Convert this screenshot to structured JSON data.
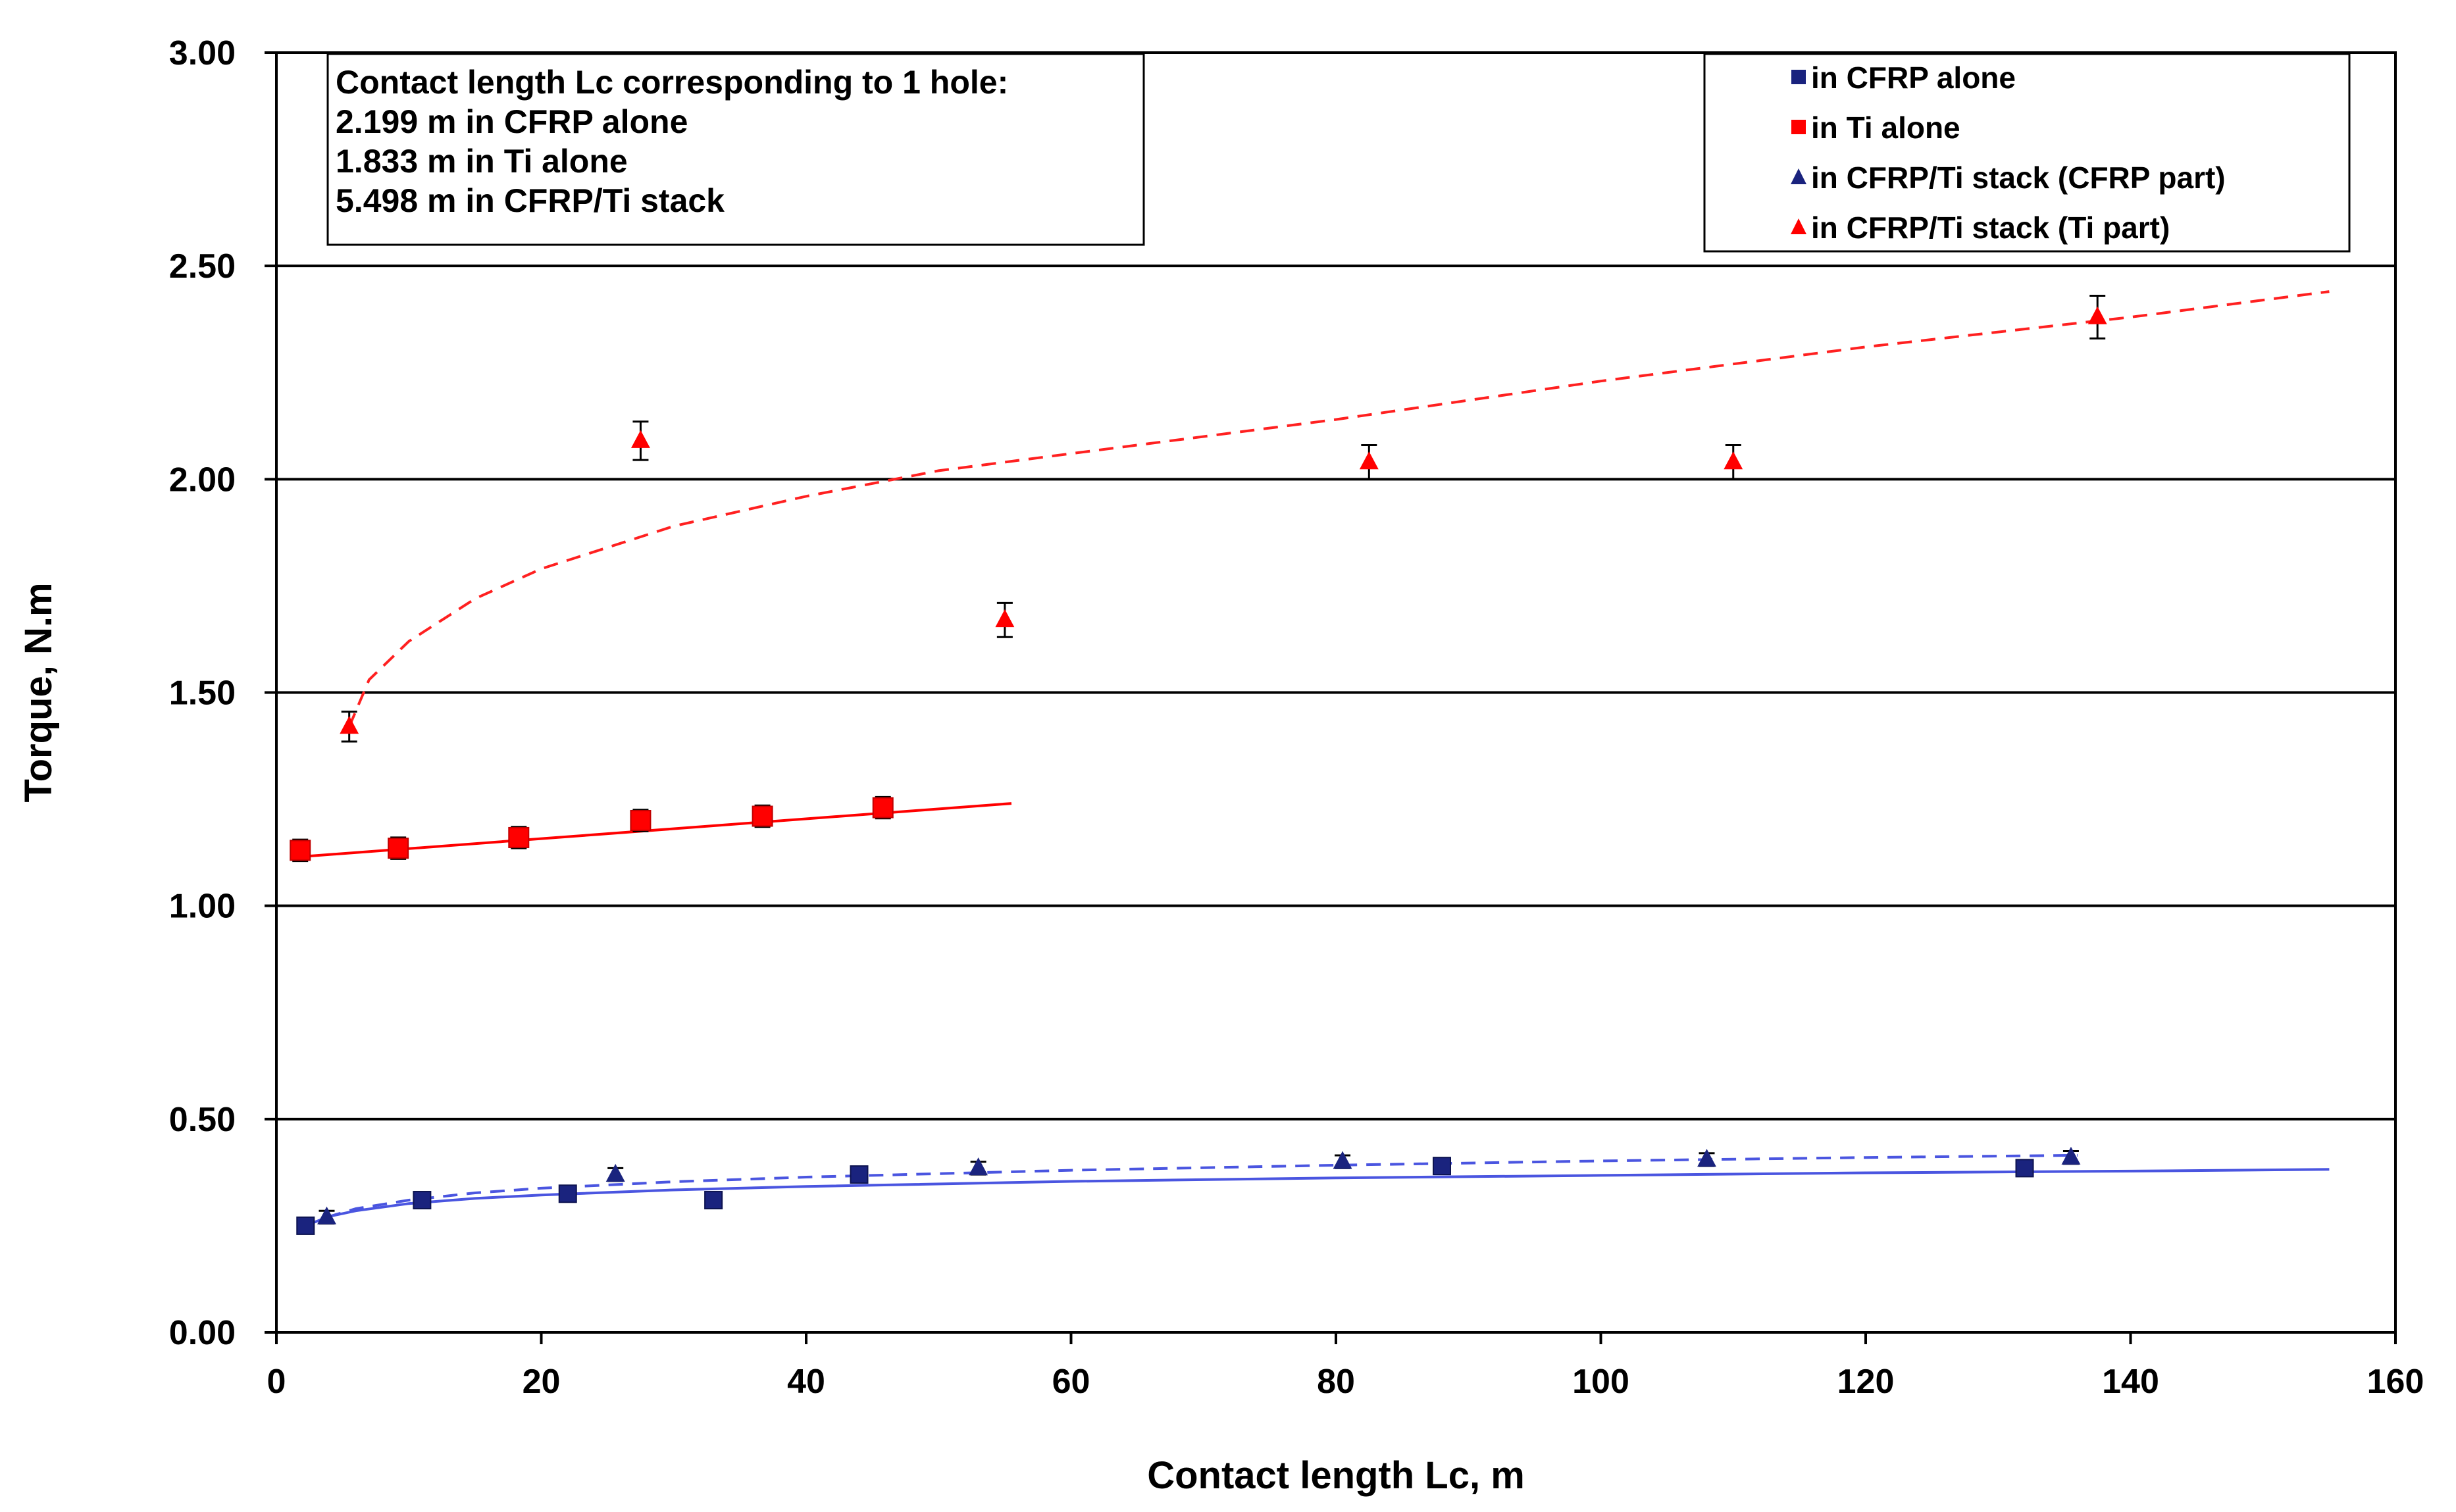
{
  "chart_data": {
    "type": "scatter",
    "title": "",
    "xlabel": "Contact length Lc, m",
    "ylabel": "Torque, N.m",
    "xlim": [
      0,
      160
    ],
    "ylim": [
      0,
      3
    ],
    "x_ticks": [
      0,
      20,
      40,
      60,
      80,
      100,
      120,
      140,
      160
    ],
    "y_ticks": [
      0,
      0.5,
      1,
      1.5,
      2,
      2.5,
      3
    ],
    "x_tick_labels": [
      "0",
      "20",
      "40",
      "60",
      "80",
      "100",
      "120",
      "140",
      "160"
    ],
    "y_tick_labels": [
      "0.00",
      "0.50",
      "1.00",
      "1.50",
      "2.00",
      "2.50",
      "3.00"
    ],
    "grid": "horizontal",
    "legend_position": "top-right",
    "annotation": {
      "lines": [
        "Contact length Lc corresponding to 1 hole:",
        "2.199  m in CFRP alone",
        "1.833  m in Ti alone",
        "5.498  m in CFRP/Ti stack"
      ]
    },
    "series": [
      {
        "name": "in CFRP alone",
        "marker": "square",
        "color": "#1a237e",
        "x": [
          2.2,
          11.0,
          22.0,
          33.0,
          44.0,
          88.0,
          132.0
        ],
        "y": [
          0.25,
          0.31,
          0.325,
          0.31,
          0.37,
          0.39,
          0.385
        ],
        "error": [
          0.01,
          0.01,
          0.01,
          0.01,
          0.01,
          0.01,
          0.01
        ],
        "trend": {
          "style": "solid",
          "color": "#4a55e0",
          "x": [
            2.2,
            4,
            6,
            10,
            15,
            20,
            30,
            40,
            60,
            80,
            100,
            120,
            140,
            155
          ],
          "y": [
            0.25,
            0.272,
            0.285,
            0.302,
            0.314,
            0.322,
            0.334,
            0.342,
            0.354,
            0.362,
            0.368,
            0.374,
            0.378,
            0.382
          ]
        }
      },
      {
        "name": "in Ti alone",
        "marker": "square",
        "color": "#ff0000",
        "x": [
          1.8,
          9.2,
          18.3,
          27.5,
          36.7,
          45.8
        ],
        "y": [
          1.13,
          1.135,
          1.16,
          1.2,
          1.21,
          1.23
        ],
        "error": [
          0.025,
          0.025,
          0.025,
          0.025,
          0.025,
          0.025
        ],
        "trend": {
          "style": "solid",
          "color": "#ff0000",
          "x": [
            1.8,
            55.5
          ],
          "y": [
            1.115,
            1.24
          ]
        }
      },
      {
        "name": "in CFRP/Ti stack (CFRP part)",
        "marker": "triangle",
        "color": "#1a237e",
        "x": [
          3.8,
          25.6,
          53.0,
          80.5,
          108.0,
          135.5
        ],
        "y": [
          0.27,
          0.37,
          0.385,
          0.4,
          0.405,
          0.41
        ],
        "error": [
          0.015,
          0.015,
          0.015,
          0.015,
          0.015,
          0.015
        ],
        "trend": {
          "style": "dashed",
          "color": "#4a55e0",
          "x": [
            3.8,
            6,
            10,
            15,
            20,
            30,
            40,
            60,
            80,
            100,
            120,
            136
          ],
          "y": [
            0.27,
            0.29,
            0.31,
            0.327,
            0.338,
            0.353,
            0.364,
            0.38,
            0.392,
            0.402,
            0.41,
            0.415
          ]
        }
      },
      {
        "name": "in CFRP/Ti stack (Ti part)",
        "marker": "triangle",
        "color": "#ff0000",
        "x": [
          5.5,
          27.5,
          55.0,
          82.5,
          110.0,
          137.5
        ],
        "y": [
          1.42,
          2.09,
          1.67,
          2.04,
          2.04,
          2.38
        ],
        "error": [
          0.035,
          0.045,
          0.04,
          0.04,
          0.04,
          0.05
        ],
        "trend": {
          "style": "dashed",
          "color": "#ff2020",
          "x": [
            5.5,
            7,
            10,
            15,
            20,
            30,
            40,
            50,
            60,
            80,
            100,
            120,
            140,
            155
          ],
          "y": [
            1.42,
            1.53,
            1.62,
            1.72,
            1.79,
            1.89,
            1.96,
            2.02,
            2.06,
            2.14,
            2.23,
            2.31,
            2.38,
            2.44
          ]
        }
      }
    ]
  }
}
